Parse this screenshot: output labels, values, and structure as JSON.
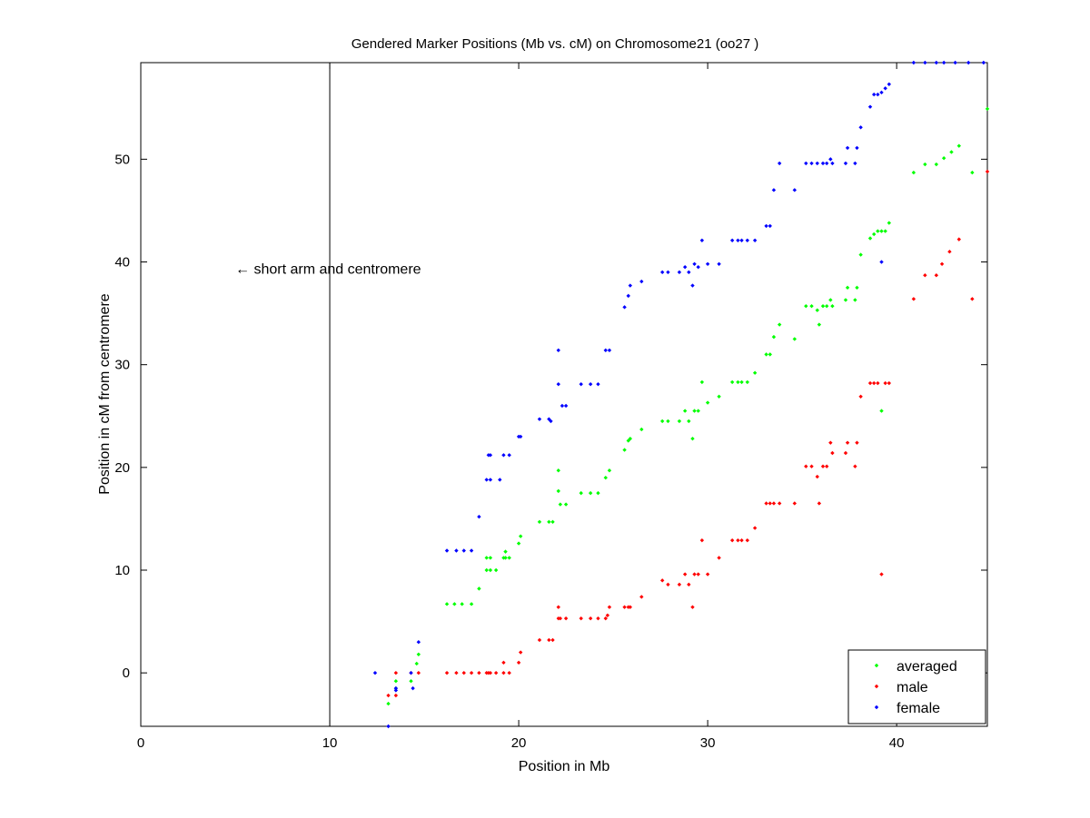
{
  "chart_data": {
    "type": "scatter",
    "title": "Gendered Marker Positions (Mb vs. cM) on Chromosome21 (oo27 )",
    "xlabel": "Position in Mb",
    "ylabel": "Position in cM from centromere",
    "xlim": [
      0,
      44.8
    ],
    "ylim": [
      -5.2,
      59.4
    ],
    "xticks": [
      0,
      10,
      20,
      30,
      40
    ],
    "yticks": [
      0,
      10,
      20,
      30,
      40,
      50
    ],
    "grid": false,
    "legend_placement": "bottom-right",
    "annotation": {
      "text": "← short arm and centromere",
      "x": 5,
      "y": 39.3
    },
    "reference_line": {
      "x": 10
    },
    "series": [
      {
        "name": "averaged",
        "color": "#00ff00",
        "points": [
          [
            13.1,
            -3.0
          ],
          [
            13.5,
            -0.8
          ],
          [
            13.5,
            -1.5
          ],
          [
            14.3,
            -0.8
          ],
          [
            14.6,
            0.9
          ],
          [
            14.7,
            1.8
          ],
          [
            16.2,
            6.7
          ],
          [
            16.6,
            6.7
          ],
          [
            17.0,
            6.7
          ],
          [
            17.5,
            6.7
          ],
          [
            17.9,
            8.2
          ],
          [
            18.3,
            11.2
          ],
          [
            18.3,
            10.0
          ],
          [
            18.5,
            11.2
          ],
          [
            18.5,
            10.0
          ],
          [
            18.8,
            10.0
          ],
          [
            19.2,
            11.2
          ],
          [
            19.3,
            11.8
          ],
          [
            19.3,
            11.2
          ],
          [
            19.5,
            11.2
          ],
          [
            20.0,
            12.6
          ],
          [
            20.1,
            13.3
          ],
          [
            21.1,
            14.7
          ],
          [
            21.6,
            14.7
          ],
          [
            21.8,
            14.7
          ],
          [
            22.1,
            19.7
          ],
          [
            22.1,
            17.7
          ],
          [
            22.2,
            16.4
          ],
          [
            22.5,
            16.4
          ],
          [
            23.3,
            17.5
          ],
          [
            23.8,
            17.5
          ],
          [
            24.2,
            17.5
          ],
          [
            24.6,
            19.0
          ],
          [
            24.8,
            19.7
          ],
          [
            25.6,
            21.7
          ],
          [
            25.8,
            22.6
          ],
          [
            25.9,
            22.8
          ],
          [
            26.5,
            23.7
          ],
          [
            27.6,
            24.5
          ],
          [
            27.9,
            24.5
          ],
          [
            28.5,
            24.5
          ],
          [
            28.8,
            25.5
          ],
          [
            29.0,
            24.5
          ],
          [
            29.2,
            22.8
          ],
          [
            29.3,
            25.5
          ],
          [
            29.5,
            25.5
          ],
          [
            29.7,
            28.3
          ],
          [
            30.0,
            26.3
          ],
          [
            30.6,
            26.9
          ],
          [
            31.3,
            28.3
          ],
          [
            31.6,
            28.3
          ],
          [
            31.8,
            28.3
          ],
          [
            32.1,
            28.3
          ],
          [
            32.5,
            29.2
          ],
          [
            33.1,
            31.0
          ],
          [
            33.3,
            31.0
          ],
          [
            33.5,
            32.7
          ],
          [
            33.8,
            33.9
          ],
          [
            34.6,
            32.5
          ],
          [
            35.2,
            35.7
          ],
          [
            35.5,
            35.7
          ],
          [
            35.8,
            35.3
          ],
          [
            35.9,
            33.9
          ],
          [
            36.1,
            35.7
          ],
          [
            36.3,
            35.7
          ],
          [
            36.5,
            36.3
          ],
          [
            36.6,
            35.7
          ],
          [
            37.3,
            36.3
          ],
          [
            37.4,
            37.5
          ],
          [
            37.8,
            36.3
          ],
          [
            37.9,
            37.5
          ],
          [
            38.1,
            40.7
          ],
          [
            38.6,
            42.3
          ],
          [
            38.8,
            42.7
          ],
          [
            39.0,
            43.0
          ],
          [
            39.2,
            43.0
          ],
          [
            39.4,
            43.0
          ],
          [
            39.6,
            43.8
          ],
          [
            39.2,
            25.5
          ],
          [
            40.9,
            48.7
          ],
          [
            41.5,
            49.5
          ],
          [
            42.1,
            49.5
          ],
          [
            42.5,
            50.1
          ],
          [
            42.9,
            50.7
          ],
          [
            43.3,
            51.3
          ],
          [
            44.0,
            48.7
          ],
          [
            44.8,
            54.9
          ]
        ]
      },
      {
        "name": "male",
        "color": "#ff0000",
        "points": [
          [
            13.1,
            -2.2
          ],
          [
            13.5,
            0
          ],
          [
            13.5,
            -2.2
          ],
          [
            14.3,
            0
          ],
          [
            14.7,
            0
          ],
          [
            16.2,
            0
          ],
          [
            16.7,
            0
          ],
          [
            17.1,
            0
          ],
          [
            17.5,
            0
          ],
          [
            17.9,
            0
          ],
          [
            18.3,
            0
          ],
          [
            18.4,
            0
          ],
          [
            18.5,
            0
          ],
          [
            18.8,
            0
          ],
          [
            19.2,
            0
          ],
          [
            19.2,
            1.0
          ],
          [
            19.5,
            0
          ],
          [
            20.0,
            1.0
          ],
          [
            20.1,
            2.0
          ],
          [
            21.1,
            3.2
          ],
          [
            21.6,
            3.2
          ],
          [
            21.8,
            3.2
          ],
          [
            22.1,
            6.4
          ],
          [
            22.1,
            5.3
          ],
          [
            22.2,
            5.3
          ],
          [
            22.5,
            5.3
          ],
          [
            23.3,
            5.3
          ],
          [
            23.8,
            5.3
          ],
          [
            24.2,
            5.3
          ],
          [
            24.6,
            5.3
          ],
          [
            24.7,
            5.6
          ],
          [
            24.8,
            6.4
          ],
          [
            25.6,
            6.4
          ],
          [
            25.8,
            6.4
          ],
          [
            25.9,
            6.4
          ],
          [
            26.5,
            7.4
          ],
          [
            27.6,
            9.0
          ],
          [
            27.9,
            8.6
          ],
          [
            28.5,
            8.6
          ],
          [
            28.8,
            9.6
          ],
          [
            29.0,
            8.6
          ],
          [
            29.2,
            6.4
          ],
          [
            29.3,
            9.6
          ],
          [
            29.5,
            9.6
          ],
          [
            29.7,
            12.9
          ],
          [
            30.0,
            9.6
          ],
          [
            30.6,
            11.2
          ],
          [
            31.3,
            12.9
          ],
          [
            31.6,
            12.9
          ],
          [
            31.8,
            12.9
          ],
          [
            32.1,
            12.9
          ],
          [
            32.5,
            14.1
          ],
          [
            33.1,
            16.5
          ],
          [
            33.3,
            16.5
          ],
          [
            33.5,
            16.5
          ],
          [
            33.8,
            16.5
          ],
          [
            34.6,
            16.5
          ],
          [
            35.2,
            20.1
          ],
          [
            35.5,
            20.1
          ],
          [
            35.8,
            19.1
          ],
          [
            35.9,
            16.5
          ],
          [
            36.1,
            20.1
          ],
          [
            36.3,
            20.1
          ],
          [
            36.5,
            22.4
          ],
          [
            36.6,
            21.4
          ],
          [
            37.3,
            21.4
          ],
          [
            37.4,
            22.4
          ],
          [
            37.8,
            20.1
          ],
          [
            37.9,
            22.4
          ],
          [
            38.1,
            26.9
          ],
          [
            38.6,
            28.2
          ],
          [
            38.8,
            28.2
          ],
          [
            39.0,
            28.2
          ],
          [
            39.2,
            9.6
          ],
          [
            39.4,
            28.2
          ],
          [
            39.6,
            28.2
          ],
          [
            40.9,
            36.4
          ],
          [
            41.5,
            38.7
          ],
          [
            42.1,
            38.7
          ],
          [
            42.4,
            39.8
          ],
          [
            42.8,
            41.0
          ],
          [
            43.3,
            42.2
          ],
          [
            44.0,
            36.4
          ],
          [
            44.8,
            48.8
          ]
        ]
      },
      {
        "name": "female",
        "color": "#0000ff",
        "points": [
          [
            12.4,
            0
          ],
          [
            13.1,
            -5.2
          ],
          [
            13.5,
            -1.5
          ],
          [
            13.5,
            -1.7
          ],
          [
            14.3,
            0
          ],
          [
            14.4,
            -1.5
          ],
          [
            14.7,
            3.0
          ],
          [
            16.2,
            11.9
          ],
          [
            16.7,
            11.9
          ],
          [
            17.1,
            11.9
          ],
          [
            17.5,
            11.9
          ],
          [
            17.9,
            15.2
          ],
          [
            18.3,
            18.8
          ],
          [
            18.4,
            21.2
          ],
          [
            18.5,
            18.8
          ],
          [
            18.5,
            21.2
          ],
          [
            19.0,
            18.8
          ],
          [
            19.2,
            21.2
          ],
          [
            19.5,
            21.2
          ],
          [
            20.0,
            23.0
          ],
          [
            20.1,
            23.0
          ],
          [
            21.1,
            24.7
          ],
          [
            21.6,
            24.7
          ],
          [
            21.7,
            24.5
          ],
          [
            22.1,
            28.1
          ],
          [
            22.1,
            31.4
          ],
          [
            22.3,
            26.0
          ],
          [
            22.5,
            26.0
          ],
          [
            23.3,
            28.1
          ],
          [
            23.8,
            28.1
          ],
          [
            24.2,
            28.1
          ],
          [
            24.6,
            31.4
          ],
          [
            24.8,
            31.4
          ],
          [
            25.6,
            35.6
          ],
          [
            25.8,
            36.7
          ],
          [
            25.9,
            37.7
          ],
          [
            26.5,
            38.1
          ],
          [
            27.6,
            39.0
          ],
          [
            27.9,
            39.0
          ],
          [
            28.5,
            39.0
          ],
          [
            28.8,
            39.5
          ],
          [
            29.0,
            39.0
          ],
          [
            29.2,
            37.7
          ],
          [
            29.3,
            39.8
          ],
          [
            29.5,
            39.5
          ],
          [
            29.7,
            42.1
          ],
          [
            30.0,
            39.8
          ],
          [
            30.6,
            39.8
          ],
          [
            31.3,
            42.1
          ],
          [
            31.6,
            42.1
          ],
          [
            31.8,
            42.1
          ],
          [
            32.1,
            42.1
          ],
          [
            32.5,
            42.1
          ],
          [
            33.1,
            43.5
          ],
          [
            33.3,
            43.5
          ],
          [
            33.5,
            47.0
          ],
          [
            33.8,
            49.6
          ],
          [
            34.6,
            47.0
          ],
          [
            35.2,
            49.6
          ],
          [
            35.5,
            49.6
          ],
          [
            35.8,
            49.6
          ],
          [
            36.1,
            49.6
          ],
          [
            36.3,
            49.6
          ],
          [
            36.5,
            50.0
          ],
          [
            36.6,
            49.6
          ],
          [
            37.3,
            49.6
          ],
          [
            37.4,
            51.1
          ],
          [
            37.8,
            49.6
          ],
          [
            37.9,
            51.1
          ],
          [
            38.1,
            53.1
          ],
          [
            38.6,
            55.1
          ],
          [
            38.8,
            56.3
          ],
          [
            39.0,
            56.3
          ],
          [
            39.2,
            56.5
          ],
          [
            39.4,
            56.9
          ],
          [
            39.6,
            57.3
          ],
          [
            39.2,
            40.0
          ],
          [
            40.9,
            59.4
          ],
          [
            41.5,
            59.4
          ],
          [
            42.1,
            59.4
          ],
          [
            42.5,
            59.4
          ],
          [
            43.1,
            59.4
          ],
          [
            43.8,
            59.4
          ],
          [
            44.6,
            59.4
          ]
        ]
      }
    ]
  }
}
